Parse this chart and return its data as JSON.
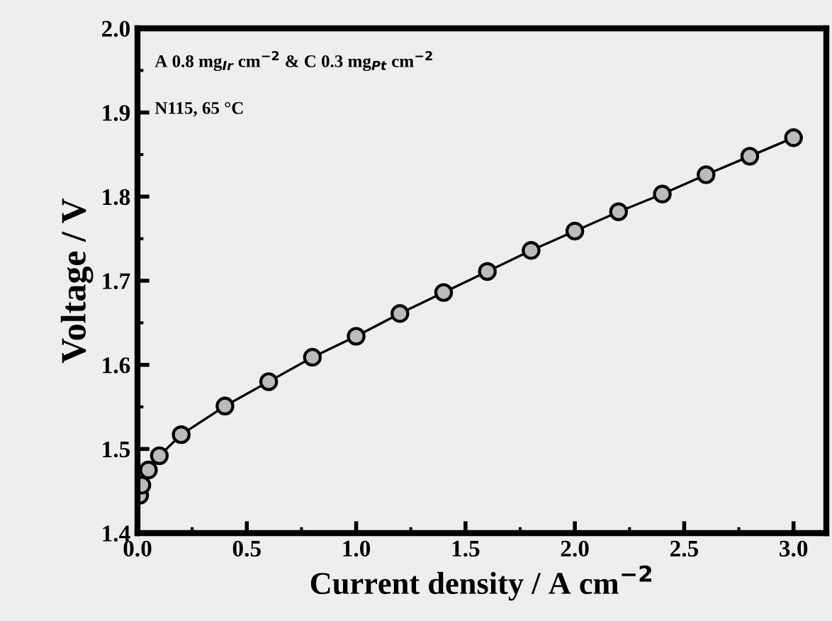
{
  "chart_data": {
    "type": "line",
    "xlabel": "Current density / A cm$^{−2}$",
    "ylabel": "Voltage / V",
    "annotations": [
      "A 0.8 mg$_{Ir}$ cm$^{−2}$ & C 0.3 mg$_{Pt}$ cm$^{−2}$",
      "N115, 65 °C"
    ],
    "x": [
      0.01,
      0.02,
      0.05,
      0.1,
      0.2,
      0.4,
      0.6,
      0.8,
      1.0,
      1.2,
      1.4,
      1.6,
      1.8,
      2.0,
      2.2,
      2.4,
      2.6,
      2.8,
      3.0
    ],
    "series": [
      {
        "color": "#000000",
        "values": [
          1.445,
          1.457,
          1.475,
          1.492,
          1.517,
          1.551,
          1.58,
          1.609,
          1.634,
          1.661,
          1.686,
          1.711,
          1.736,
          1.759,
          1.782,
          1.803,
          1.826,
          1.848,
          1.87
        ]
      }
    ],
    "xlim": [
      0,
      3.15
    ],
    "ylim": [
      1.4,
      2.0
    ],
    "xticks": [
      {
        "value": 0,
        "label": "0.0"
      },
      0.5,
      {
        "value": 1,
        "label": "1.0"
      },
      1.5,
      {
        "value": 2,
        "label": "2.0"
      },
      2.5,
      {
        "value": 3,
        "label": "3.0"
      }
    ],
    "yticks": [
      1.4,
      1.5,
      1.6,
      1.7,
      1.8,
      1.9,
      {
        "value": 2,
        "label": "2.0"
      }
    ],
    "marker": "circle",
    "line_style": "solid",
    "grid": false,
    "legend": false
  }
}
